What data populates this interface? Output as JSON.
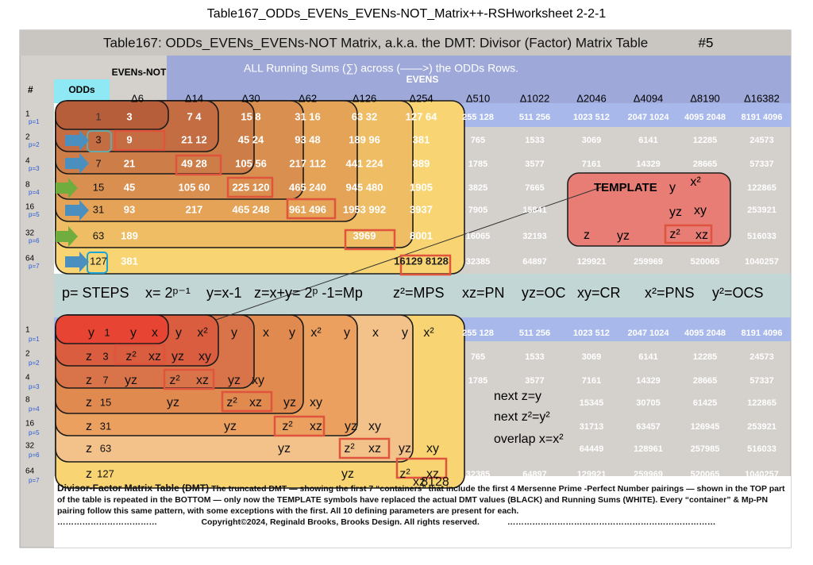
{
  "page_title": "Table167_ODDs_EVENs_EVENs-NOT_Matrix++-RSHworksheet 2-2-1",
  "table": {
    "title": "Table167: ODDs_EVENs_EVENs-NOT Matrix, a.k.a. the DMT: Divisor (Factor) Matrix Table",
    "sheet_number": "#5",
    "running_sums_note": "ALL Running Sums (∑) across (——>) the ODDs Rows.",
    "row_header": "#",
    "odds_header": "ODDs",
    "evens_not_header": "EVENs-NOT",
    "evens_header": "EVENS",
    "deltas": [
      "Δ6",
      "Δ14",
      "Δ30",
      "Δ62",
      "Δ126",
      "Δ254",
      "Δ510",
      "Δ1022",
      "Δ2046",
      "Δ4094",
      "Δ8190",
      "Δ16382"
    ],
    "top_rows": [
      {
        "n": "1",
        "p": "p=1",
        "odd": "1",
        "cells": [
          "3",
          "7 4",
          "15 8",
          "31 16",
          "63 32",
          "127 64",
          "255 128",
          "511 256",
          "1023 512",
          "2047 1024",
          "4095 2048",
          "8191 4096"
        ]
      },
      {
        "n": "2",
        "p": "p=2",
        "odd": "3",
        "cells": [
          "9",
          "21 12",
          "45 24",
          "93 48",
          "189 96",
          "381",
          "765",
          "1533",
          "3069",
          "6141",
          "12285",
          "24573"
        ]
      },
      {
        "n": "4",
        "p": "p=3",
        "odd": "7",
        "cells": [
          "21",
          "49 28",
          "105 56",
          "217 112",
          "441 224",
          "889",
          "1785",
          "3577",
          "7161",
          "14329",
          "28665",
          "57337"
        ]
      },
      {
        "n": "8",
        "p": "p=4",
        "odd": "15",
        "cells": [
          "45",
          "105 60",
          "225 120",
          "465 240",
          "945 480",
          "1905",
          "3825",
          "7665",
          null,
          null,
          null,
          "122865"
        ]
      },
      {
        "n": "16",
        "p": "p=5",
        "odd": "31",
        "cells": [
          "93",
          "217",
          "465 248",
          "961 496",
          "1953 992",
          "3937",
          "7905",
          "15841",
          null,
          null,
          null,
          "253921"
        ]
      },
      {
        "n": "32",
        "p": "p=6",
        "odd": "63",
        "cells": [
          "189",
          null,
          null,
          null,
          "3969",
          "8001",
          "16065",
          "32193",
          null,
          null,
          null,
          "516033"
        ]
      },
      {
        "n": "64",
        "p": "p=7",
        "odd": "127",
        "cells": [
          "381",
          null,
          null,
          null,
          null,
          "16129 8128",
          "32385",
          "64897",
          "129921",
          "259969",
          "520065",
          "1040257"
        ]
      }
    ],
    "formula": [
      "p= STEPS",
      "x= 2ᵖ⁻¹",
      "y=x-1",
      "z=x+y= 2ᵖ -1=Mp",
      "z²=MPS",
      "xz=PN",
      "yz=OC",
      "xy=CR",
      "x²=PNS",
      "y²=OCS"
    ],
    "template": {
      "title": "TEMPLATE",
      "symbols": [
        "y",
        "x²",
        "yz",
        "xy",
        "z",
        "yz",
        "z²",
        "xz"
      ]
    },
    "bottom_rows": [
      {
        "n": "1",
        "p": "p=1",
        "symbols": [
          "y",
          "1",
          "y",
          "x",
          "y",
          "x²",
          "y",
          "x",
          "y",
          "x²",
          "y",
          "x",
          "y",
          "x²"
        ],
        "cells": [
          "255 128",
          "511 256",
          "1023 512",
          "2047 1024",
          "4095 2048",
          "8191 4096"
        ]
      },
      {
        "n": "2",
        "p": "p=2",
        "symbols": [
          "z",
          "3",
          "z²",
          "xz",
          "yz",
          "xy"
        ],
        "cells": [
          "765",
          "1533",
          "3069",
          "6141",
          "12285",
          "24573"
        ]
      },
      {
        "n": "4",
        "p": "p=3",
        "symbols": [
          "z",
          "7",
          "yz",
          "z²",
          "xz",
          "yz",
          "xy"
        ],
        "cells": [
          "1785",
          "3577",
          "7161",
          "14329",
          "28665",
          "57337"
        ]
      },
      {
        "n": "8",
        "p": "p=4",
        "symbols": [
          "z",
          "15",
          "yz",
          "z²",
          "xz",
          "yz",
          "xy"
        ],
        "cells": [
          null,
          null,
          "15345",
          "30705",
          "61425",
          "122865"
        ]
      },
      {
        "n": "16",
        "p": "p=5",
        "symbols": [
          "z",
          "31",
          "yz",
          "z²",
          "xz",
          "yz",
          "xy"
        ],
        "cells": [
          null,
          null,
          "31713",
          "63457",
          "126945",
          "253921"
        ]
      },
      {
        "n": "32",
        "p": "p=6",
        "symbols": [
          "z",
          "63",
          "yz",
          "z²",
          "xz",
          "yz",
          "xy"
        ],
        "cells": [
          null,
          null,
          "64449",
          "128961",
          "257985",
          "516033"
        ]
      },
      {
        "n": "64",
        "p": "p=7",
        "symbols": [
          "z",
          "127",
          "yz",
          "z²",
          "xz",
          "xz",
          "8128"
        ],
        "cells": [
          "32385",
          "64897",
          "129921",
          "259969",
          "520065",
          "1040257"
        ]
      }
    ],
    "notes": [
      "next z=y",
      "next z²=y²",
      "overlap x=x²"
    ],
    "footer": {
      "heading": "Divisor-Factor Matrix Table (DMT)",
      "text": "The truncated DMT — showing the first 7 “containers” that include the first 4 Mersenne Prime -Perfect Number pairings — shown in the TOP part of the table is repeated in the BOTTOM — only now the TEMPLATE symbols have replaced the actual DMT values (BLACK) and Running Sums (WHITE). Every “container” & Mp-PN pairing follow this same pattern, with some exceptions with the first. All 10 defining parameters are present for each.",
      "dots_left": "………………………………",
      "copyright": "Copyright©2024, Reginald Brooks, Brooks Design. All rights reserved.",
      "dots_right": "…………………………………………………………………"
    }
  }
}
